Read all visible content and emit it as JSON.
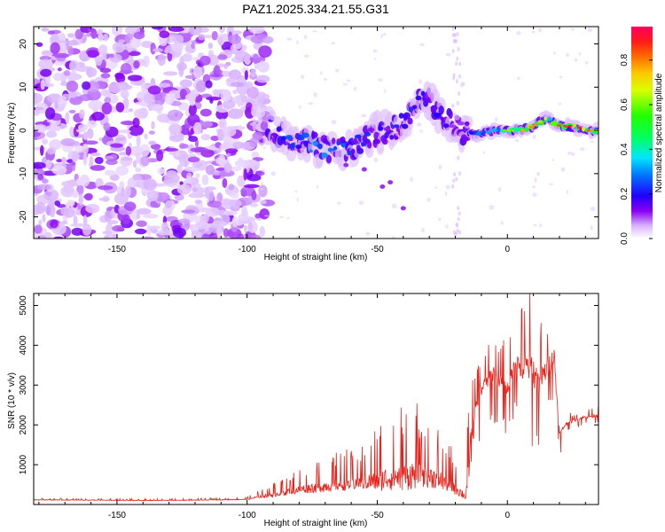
{
  "title": "PAZ1.2025.334.21.55.G31",
  "chart_data": [
    {
      "type": "heatmap",
      "name": "spectrogram",
      "xlabel": "Height of straight line (km)",
      "ylabel": "Frequency (Hz)",
      "xlim": [
        -182,
        35
      ],
      "ylim": [
        -25,
        24
      ],
      "xticks": [
        -150,
        -100,
        -50,
        0
      ],
      "yticks": [
        -20,
        -10,
        0,
        10,
        20
      ],
      "colorbar": {
        "label": "Normalized spectral amplitude",
        "range": [
          0,
          0.95
        ],
        "ticks": [
          0.0,
          0.2,
          0.4,
          0.6,
          0.8
        ]
      },
      "signal_track": {
        "description_points_x": [
          -92,
          -85,
          -75,
          -68,
          -60,
          -52,
          -45,
          -38,
          -32,
          -26,
          -22,
          -18,
          -12,
          -5,
          0,
          5,
          10,
          15,
          20,
          25,
          30,
          35
        ],
        "description_points_y": [
          1,
          -2,
          -3,
          -5,
          -4,
          -1,
          0,
          3,
          8,
          4,
          2,
          0,
          -1,
          0,
          0,
          0,
          1,
          3,
          1,
          1,
          0,
          0
        ],
        "strength": [
          0.1,
          0.25,
          0.3,
          0.3,
          0.25,
          0.2,
          0.2,
          0.25,
          0.2,
          0.2,
          0.15,
          0.1,
          0.3,
          0.35,
          0.45,
          0.6,
          0.65,
          0.5,
          0.7,
          0.75,
          0.7,
          0.5
        ]
      }
    },
    {
      "type": "line",
      "name": "snr",
      "xlabel": "Height of straight line (km)",
      "ylabel": "SNR (10 * v/v)",
      "xlim": [
        -182,
        35
      ],
      "ylim": [
        0,
        5300
      ],
      "xticks": [
        -150,
        -100,
        -50,
        0
      ],
      "yticks": [
        1000,
        2000,
        3000,
        4000,
        5000
      ],
      "color": "#e8221b",
      "trend_x": [
        -182,
        -160,
        -140,
        -120,
        -100,
        -95,
        -90,
        -85,
        -80,
        -75,
        -70,
        -65,
        -60,
        -55,
        -50,
        -45,
        -40,
        -35,
        -30,
        -25,
        -20,
        -16,
        -14,
        -12,
        -10,
        -8,
        -5,
        -2,
        0,
        3,
        6,
        9,
        12,
        15,
        18,
        20,
        22,
        25,
        30,
        35
      ],
      "trend_y": [
        120,
        110,
        100,
        110,
        130,
        200,
        250,
        320,
        380,
        420,
        460,
        500,
        530,
        560,
        600,
        680,
        720,
        760,
        720,
        600,
        420,
        200,
        1500,
        2400,
        2900,
        3100,
        3300,
        3000,
        2900,
        3600,
        3400,
        3500,
        3000,
        3400,
        3700,
        1700,
        2000,
        2100,
        2200,
        2250
      ],
      "spike_amp": [
        30,
        30,
        30,
        30,
        40,
        120,
        200,
        300,
        350,
        450,
        500,
        550,
        600,
        650,
        900,
        1100,
        1300,
        1200,
        1000,
        800,
        600,
        300,
        2000,
        900,
        800,
        700,
        900,
        800,
        800,
        900,
        1200,
        1500,
        1300,
        900,
        900,
        400,
        200,
        150,
        150,
        150
      ]
    }
  ]
}
